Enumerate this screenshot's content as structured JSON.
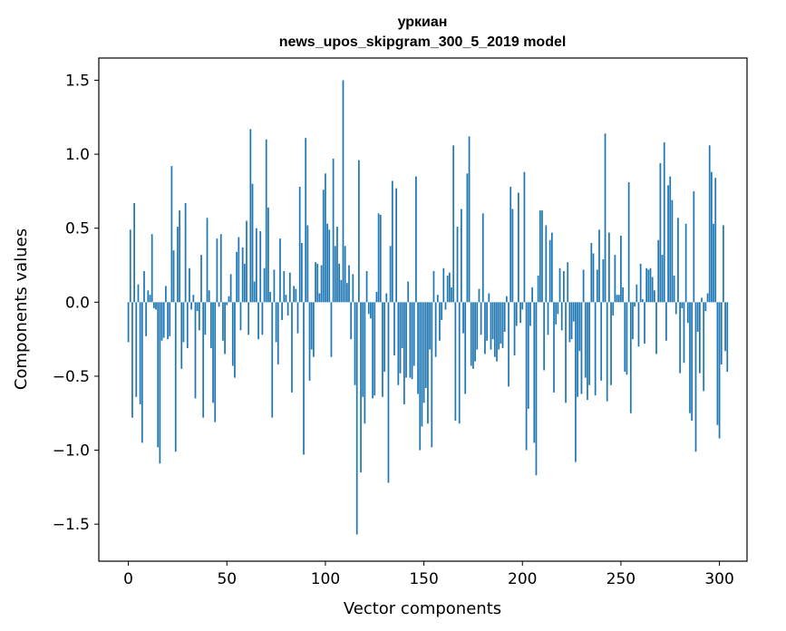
{
  "chart_data": {
    "type": "bar",
    "title_line1": "уркиан",
    "title_line2": "news_upos_skipgram_300_5_2019 model",
    "xlabel": "Vector components",
    "ylabel": "Components values",
    "xlim": [
      -15,
      314
    ],
    "ylim": [
      -1.75,
      1.65
    ],
    "xticks": [
      0,
      50,
      100,
      150,
      200,
      250,
      300
    ],
    "xtick_labels": [
      "0",
      "50",
      "100",
      "150",
      "200",
      "250",
      "300"
    ],
    "yticks": [
      1.5,
      1.0,
      0.5,
      0.0,
      -0.5,
      -1.0,
      -1.5
    ],
    "ytick_labels": [
      "1.5",
      "1.0",
      "0.5",
      "0.0",
      "−0.5",
      "−1.0",
      "−1.5"
    ],
    "bar_color": "#1f77b4",
    "values": [
      -0.27,
      0.49,
      -0.78,
      0.67,
      -0.64,
      0.12,
      -0.69,
      -0.95,
      0.21,
      -0.23,
      0.08,
      0.05,
      0.46,
      -0.04,
      -0.05,
      -0.98,
      -1.09,
      -0.26,
      -0.24,
      0.11,
      -0.25,
      -0.23,
      0.92,
      0.35,
      -1.01,
      0.51,
      0.62,
      -0.45,
      -0.27,
      0.67,
      -0.31,
      0.23,
      -0.05,
      0.05,
      -0.65,
      -0.06,
      -0.19,
      0.32,
      -0.78,
      -0.22,
      0.57,
      0.08,
      -0.31,
      -0.68,
      -0.81,
      0.43,
      -0.03,
      0.46,
      -0.26,
      -0.35,
      -0.02,
      0.04,
      0.19,
      -0.43,
      -0.51,
      0.34,
      0.44,
      -0.19,
      0.37,
      0.26,
      0.55,
      -0.22,
      1.17,
      0.8,
      0.14,
      0.5,
      -0.25,
      0.48,
      -0.22,
      0.23,
      1.1,
      0.64,
      0.07,
      -0.78,
      0.22,
      -0.27,
      -0.42,
      0.43,
      -0.12,
      0.21,
      0.05,
      -0.09,
      0.2,
      -0.61,
      0.11,
      0.09,
      -0.21,
      0.78,
      0.4,
      -1.03,
      1.11,
      0.52,
      -0.53,
      -0.32,
      -0.37,
      0.27,
      0.26,
      0.06,
      0.25,
      0.76,
      0.87,
      0.53,
      0.49,
      -0.37,
      0.97,
      0.38,
      0.51,
      0.26,
      0.15,
      1.5,
      0.38,
      0.13,
      0.25,
      -0.25,
      0.19,
      -0.56,
      -1.57,
      0.96,
      -1.15,
      -0.64,
      -0.82,
      0.21,
      -0.08,
      -0.11,
      -0.65,
      -0.63,
      0.07,
      0.6,
      0.59,
      -0.64,
      -0.47,
      0.06,
      -1.22,
      0.38,
      0.82,
      -0.36,
      0.77,
      -0.56,
      -0.48,
      -0.31,
      -0.69,
      -0.51,
      0.14,
      -0.51,
      -0.52,
      -0.43,
      0.85,
      -0.62,
      -1.0,
      -0.84,
      -0.68,
      -0.58,
      -0.82,
      -0.32,
      -0.98,
      0.21,
      -0.37,
      0.05,
      -0.26,
      -0.12,
      0.23,
      -0.05,
      0.18,
      0.2,
      0.1,
      1.06,
      -0.8,
      0.51,
      -0.82,
      0.63,
      -0.21,
      -0.62,
      0.87,
      1.12,
      -0.43,
      -0.45,
      -0.4,
      -0.32,
      0.09,
      -0.22,
      0.6,
      -0.35,
      -0.26,
      0.06,
      -0.32,
      -0.25,
      -0.37,
      -0.4,
      -0.32,
      -0.28,
      -0.31,
      -0.2,
      0.04,
      -0.57,
      0.78,
      0.63,
      -0.36,
      -0.16,
      0.74,
      -0.14,
      -0.05,
      0.88,
      -1.0,
      -0.72,
      -0.16,
      0.1,
      -0.95,
      -1.17,
      0.18,
      0.62,
      0.62,
      -0.46,
      0.52,
      -0.22,
      0.42,
      0.47,
      -0.61,
      -0.15,
      -0.08,
      0.23,
      -0.19,
      0.21,
      -0.68,
      0.27,
      -0.27,
      -0.25,
      -0.13,
      -1.08,
      -0.64,
      -0.33,
      -0.62,
      0.22,
      -0.51,
      -0.66,
      -0.56,
      0.4,
      0.33,
      -0.63,
      0.22,
      0.49,
      -0.53,
      0.29,
      1.14,
      -0.67,
      0.47,
      -0.56,
      -0.09,
      0.32,
      0.05,
      0.05,
      0.45,
      0.1,
      -0.47,
      -0.49,
      0.81,
      -0.75,
      -0.25,
      -0.03,
      0.12,
      -0.3,
      0.26,
      0.02,
      -0.28,
      0.23,
      0.22,
      0.23,
      0.17,
      0.08,
      -0.35,
      0.42,
      0.94,
      0.32,
      1.08,
      -0.26,
      0.79,
      0.85,
      0.69,
      0.18,
      -0.08,
      0.57,
      -0.48,
      -0.04,
      -0.41,
      0.53,
      -0.14,
      -0.75,
      -0.8,
      0.75,
      -1.01,
      -0.2,
      -0.48,
      0.03,
      -0.6,
      -0.06,
      0.06,
      1.06,
      0.88,
      0.53,
      0.84,
      -0.83,
      -0.92,
      -0.42,
      0.52,
      -0.33,
      -0.47
    ]
  }
}
